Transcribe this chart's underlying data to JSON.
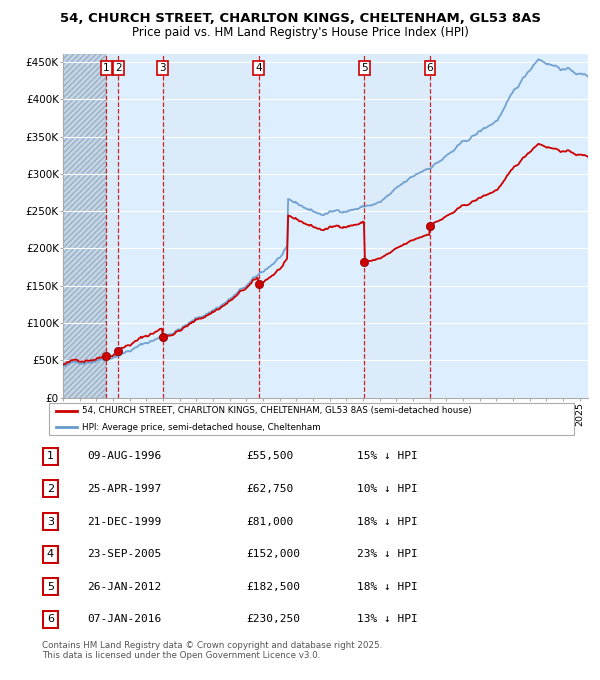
{
  "title_line1": "54, CHURCH STREET, CHARLTON KINGS, CHELTENHAM, GL53 8AS",
  "title_line2": "Price paid vs. HM Land Registry's House Price Index (HPI)",
  "sale_dates_num": [
    1996.6,
    1997.32,
    1999.97,
    2005.73,
    2012.07,
    2016.02
  ],
  "sale_prices": [
    55500,
    62750,
    81000,
    152000,
    182500,
    230250
  ],
  "sale_labels": [
    "1",
    "2",
    "3",
    "4",
    "5",
    "6"
  ],
  "legend_red": "54, CHURCH STREET, CHARLTON KINGS, CHELTENHAM, GL53 8AS (semi-detached house)",
  "legend_blue": "HPI: Average price, semi-detached house, Cheltenham",
  "table_rows": [
    [
      "1",
      "09-AUG-1996",
      "£55,500",
      "15% ↓ HPI"
    ],
    [
      "2",
      "25-APR-1997",
      "£62,750",
      "10% ↓ HPI"
    ],
    [
      "3",
      "21-DEC-1999",
      "£81,000",
      "18% ↓ HPI"
    ],
    [
      "4",
      "23-SEP-2005",
      "£152,000",
      "23% ↓ HPI"
    ],
    [
      "5",
      "26-JAN-2012",
      "£182,500",
      "18% ↓ HPI"
    ],
    [
      "6",
      "07-JAN-2016",
      "£230,250",
      "13% ↓ HPI"
    ]
  ],
  "footer": "Contains HM Land Registry data © Crown copyright and database right 2025.\nThis data is licensed under the Open Government Licence v3.0.",
  "xmin": 1994.0,
  "xmax": 2025.5,
  "ymin": 0,
  "ymax": 460000,
  "yticks": [
    0,
    50000,
    100000,
    150000,
    200000,
    250000,
    300000,
    350000,
    400000,
    450000
  ],
  "ytick_labels": [
    "£0",
    "£50K",
    "£100K",
    "£150K",
    "£200K",
    "£250K",
    "£300K",
    "£350K",
    "£400K",
    "£450K"
  ],
  "red_color": "#cc0000",
  "blue_color": "#6699cc",
  "bg_chart": "#ddeeff",
  "grid_color": "#ffffff",
  "vline_color": "#cc0000",
  "hatch_region_end": 1996.6
}
